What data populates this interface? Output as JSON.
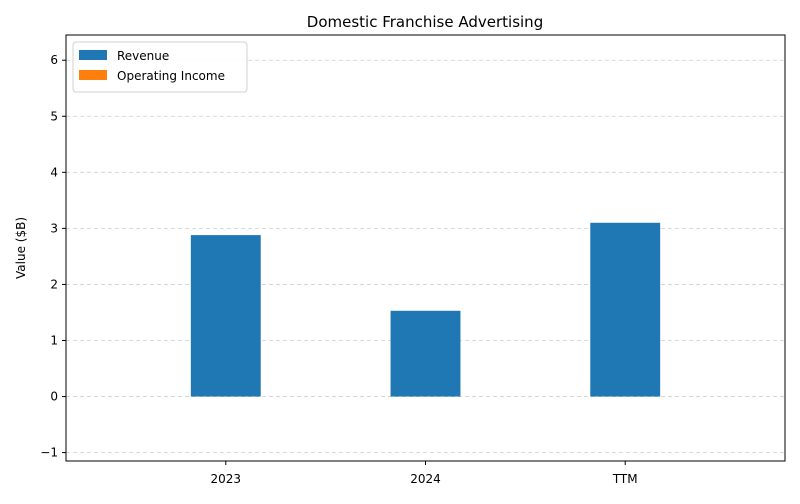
{
  "chart_data": {
    "type": "bar",
    "title": "Domestic Franchise Advertising",
    "xlabel": "",
    "ylabel": "Value ($B)",
    "categories": [
      "2023",
      "2024",
      "TTM"
    ],
    "series": [
      {
        "name": "Revenue",
        "values": [
          2.88,
          1.53,
          3.1
        ],
        "color": "#1f77b4"
      },
      {
        "name": "Operating Income",
        "values": [
          0,
          0,
          0
        ],
        "color": "#ff7f0e"
      }
    ],
    "ylim": [
      -1.15,
      6.45
    ],
    "yticks": [
      -1,
      0,
      1,
      2,
      3,
      4,
      5,
      6
    ],
    "grid": "y-dashed",
    "legend_position": "top-left"
  }
}
